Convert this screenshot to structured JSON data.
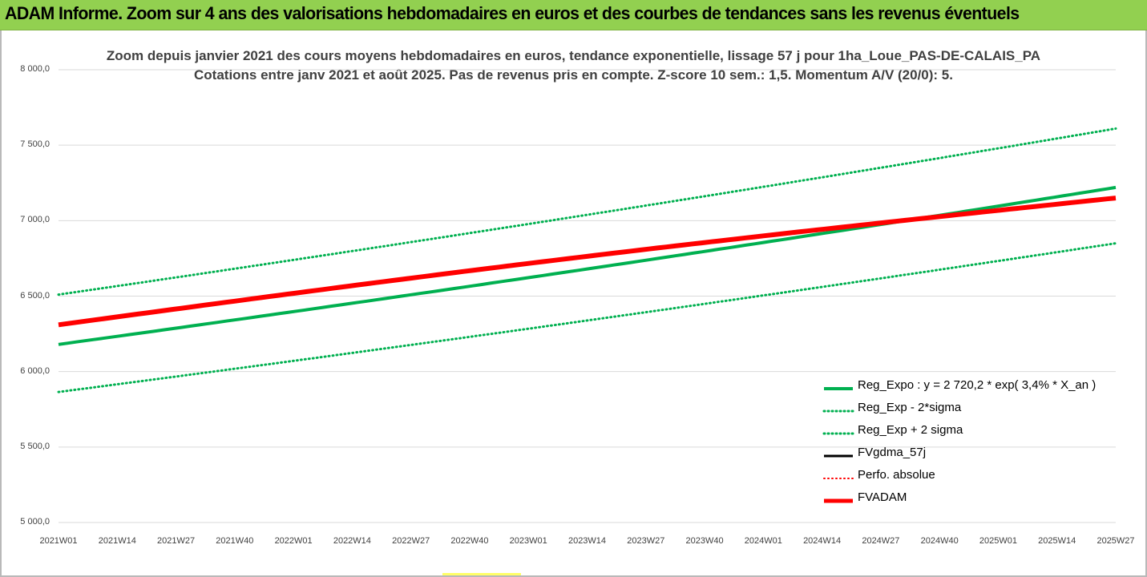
{
  "banner": {
    "title": "ADAM Informe. Zoom sur 4 ans des valorisations hebdomadaires en euros et des courbes de tendances sans les revenus éventuels",
    "color": "#92d050"
  },
  "chart_data": {
    "type": "line",
    "title": "Zoom depuis janvier 2021 des cours moyens hebdomadaires en euros, tendance exponentielle, lissage 57 j pour 1ha_Loue_PAS-DE-CALAIS_PA",
    "subtitle": "Cotations entre janv 2021 et août 2025.  Pas de revenus pris en compte. Z-score 10 sem.: 1,5. Momentum A/V (20/0): 5.",
    "ylim": [
      5000,
      8000
    ],
    "yticks": [
      "5 000,0",
      "5 500,0",
      "6 000,0",
      "6 500,0",
      "7 000,0",
      "7 500,0",
      "8 000,0"
    ],
    "x_tick_labels": [
      "2021W01",
      "2021W14",
      "2021W27",
      "2021W40",
      "2022W01",
      "2022W14",
      "2022W27",
      "2022W40",
      "2023W01",
      "2023W14",
      "2023W27",
      "2023W40",
      "2024W01",
      "2024W14",
      "2024W27",
      "2024W40",
      "2025W01",
      "2025W14",
      "2025W27"
    ],
    "grid": true,
    "legend_position": "bottom-right",
    "series": [
      {
        "name": "Reg_Expo : y = 2 720,2 * exp( 3,4% *  X_an )",
        "color": "#00b050",
        "style": "solid",
        "width": 4,
        "start": 6180,
        "end": 7220
      },
      {
        "name": "Reg_Exp - 2*sigma",
        "color": "#00b050",
        "style": "dotted",
        "width": 3,
        "start": 5865,
        "end": 6850
      },
      {
        "name": "Reg_Exp + 2 sigma",
        "color": "#00b050",
        "style": "dotted",
        "width": 3,
        "start": 6510,
        "end": 7610
      },
      {
        "name": "FVgdma_57j",
        "color": "#000000",
        "style": "solid",
        "width": 3,
        "start": 6310,
        "end": 7150,
        "hidden": true
      },
      {
        "name": "Perfo. absolue",
        "color": "#ff0000",
        "style": "dotted",
        "width": 2,
        "start": 6310,
        "end": 7150,
        "hidden": true
      },
      {
        "name": "FVADAM",
        "color": "#ff0000",
        "style": "solid",
        "width": 6,
        "start": 6310,
        "end": 7150,
        "curvature": 0.04
      }
    ]
  }
}
